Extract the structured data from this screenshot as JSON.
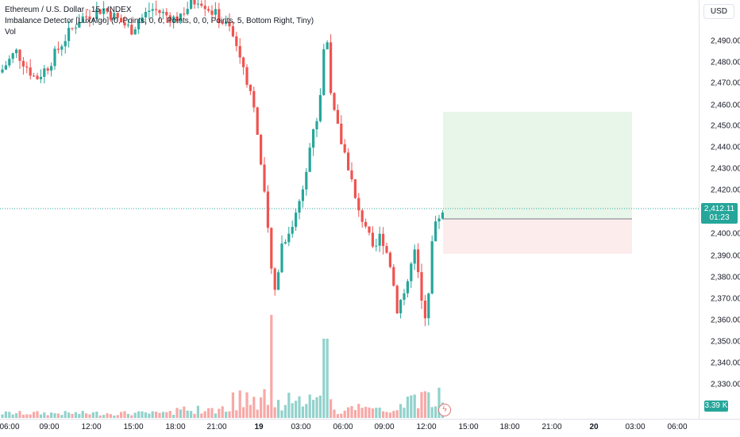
{
  "legend": {
    "symbol_line": "Ethereum / U.S. Dollar · 15 · INDEX",
    "indicator_line": "Imbalance Detector [LuxAlgo] (0, Points, 0, 0, Points, 0, 0, Points, 5, Bottom Right, Tiny)",
    "vol_line": "Vol"
  },
  "price_scale": {
    "currency": "USD",
    "ticks": [
      "2,490.00",
      "2,480.00",
      "2,470.00",
      "2,460.00",
      "2,450.00",
      "2,440.00",
      "2,430.00",
      "2,420.00",
      "2,400.00",
      "2,390.00",
      "2,380.00",
      "2,370.00",
      "2,360.00",
      "2,350.00",
      "2,340.00",
      "2,330.00"
    ],
    "current_price": "2,412.11",
    "countdown": "01:23",
    "volume_label": "3.39 K"
  },
  "time_scale": {
    "ticks": [
      "06:00",
      "09:00",
      "12:00",
      "15:00",
      "18:00",
      "21:00",
      "19",
      "03:00",
      "06:00",
      "09:00",
      "12:00",
      "15:00",
      "18:00",
      "21:00",
      "20",
      "03:00",
      "06:00"
    ]
  },
  "colors": {
    "up": "#26a69a",
    "down": "#ef5350",
    "target_zone": "#e8f5e9",
    "stop_zone": "#fdecec"
  },
  "icons": {
    "alert": "lightning-bolt-icon"
  }
}
